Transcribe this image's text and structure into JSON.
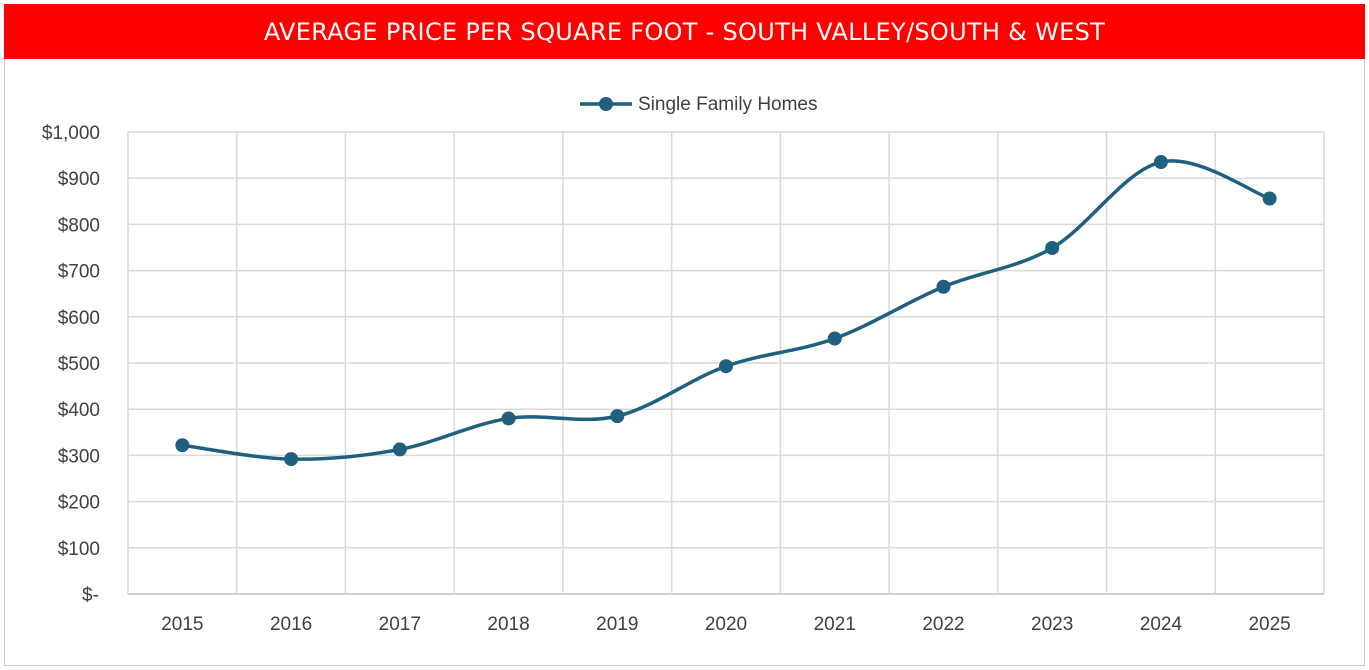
{
  "chart_data": {
    "type": "line",
    "title": "AVERAGE PRICE PER SQUARE FOOT - SOUTH VALLEY/SOUTH & WEST",
    "categories": [
      "2015",
      "2016",
      "2017",
      "2018",
      "2019",
      "2020",
      "2021",
      "2022",
      "2023",
      "2024",
      "2025"
    ],
    "series": [
      {
        "name": "Single Family Homes",
        "values": [
          322,
          292,
          313,
          380,
          385,
          493,
          553,
          665,
          749,
          935,
          856
        ],
        "color": "#1f5f7f"
      }
    ],
    "ylim": [
      0,
      1000
    ],
    "y_ticks": [
      0,
      100,
      200,
      300,
      400,
      500,
      600,
      700,
      800,
      900,
      1000
    ],
    "y_tick_labels": [
      "$-",
      "$100",
      "$200",
      "$300",
      "$400",
      "$500",
      "$600",
      "$700",
      "$800",
      "$900",
      "$1,000"
    ],
    "grid": true,
    "smooth": true,
    "legend_position": "top-center",
    "title_bar_color": "#ff0000"
  }
}
